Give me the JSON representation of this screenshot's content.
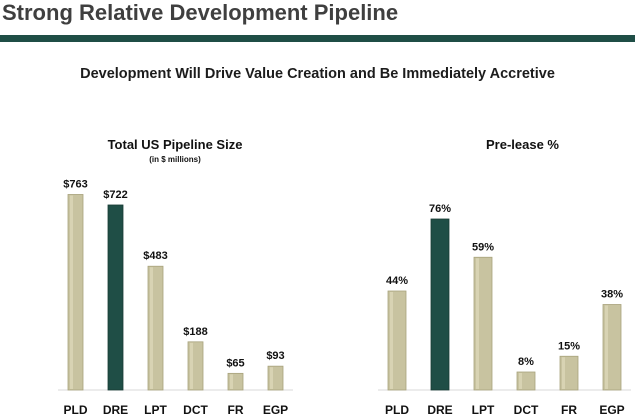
{
  "header": {
    "title": "Strong Relative Development Pipeline",
    "subtitle": "Development Will Drive Value Creation and Be Immediately Accretive"
  },
  "colors": {
    "rule": "#1f4e46",
    "bar": "#c8c3a0",
    "bar_edge": "#a8a27c",
    "highlight": "#1f4e46"
  },
  "chart_data": [
    {
      "type": "bar",
      "title": "Total US Pipeline Size",
      "subtitle": "(in $ millions)",
      "categories": [
        "PLD",
        "DRE",
        "LPT",
        "DCT",
        "FR",
        "EGP"
      ],
      "values": [
        763,
        722,
        483,
        188,
        65,
        93
      ],
      "value_labels": [
        "$763",
        "$722",
        "$483",
        "$188",
        "$65",
        "$93"
      ],
      "highlight": "DRE",
      "ylim": [
        0,
        800
      ],
      "grid": false
    },
    {
      "type": "bar",
      "title": "Pre-lease %",
      "categories": [
        "PLD",
        "DRE",
        "LPT",
        "DCT",
        "FR",
        "EGP"
      ],
      "values": [
        44,
        76,
        59,
        8,
        15,
        38
      ],
      "value_labels": [
        "44%",
        "76%",
        "59%",
        "8%",
        "15%",
        "38%"
      ],
      "highlight": "DRE",
      "ylim": [
        0,
        80
      ],
      "grid": false
    }
  ]
}
